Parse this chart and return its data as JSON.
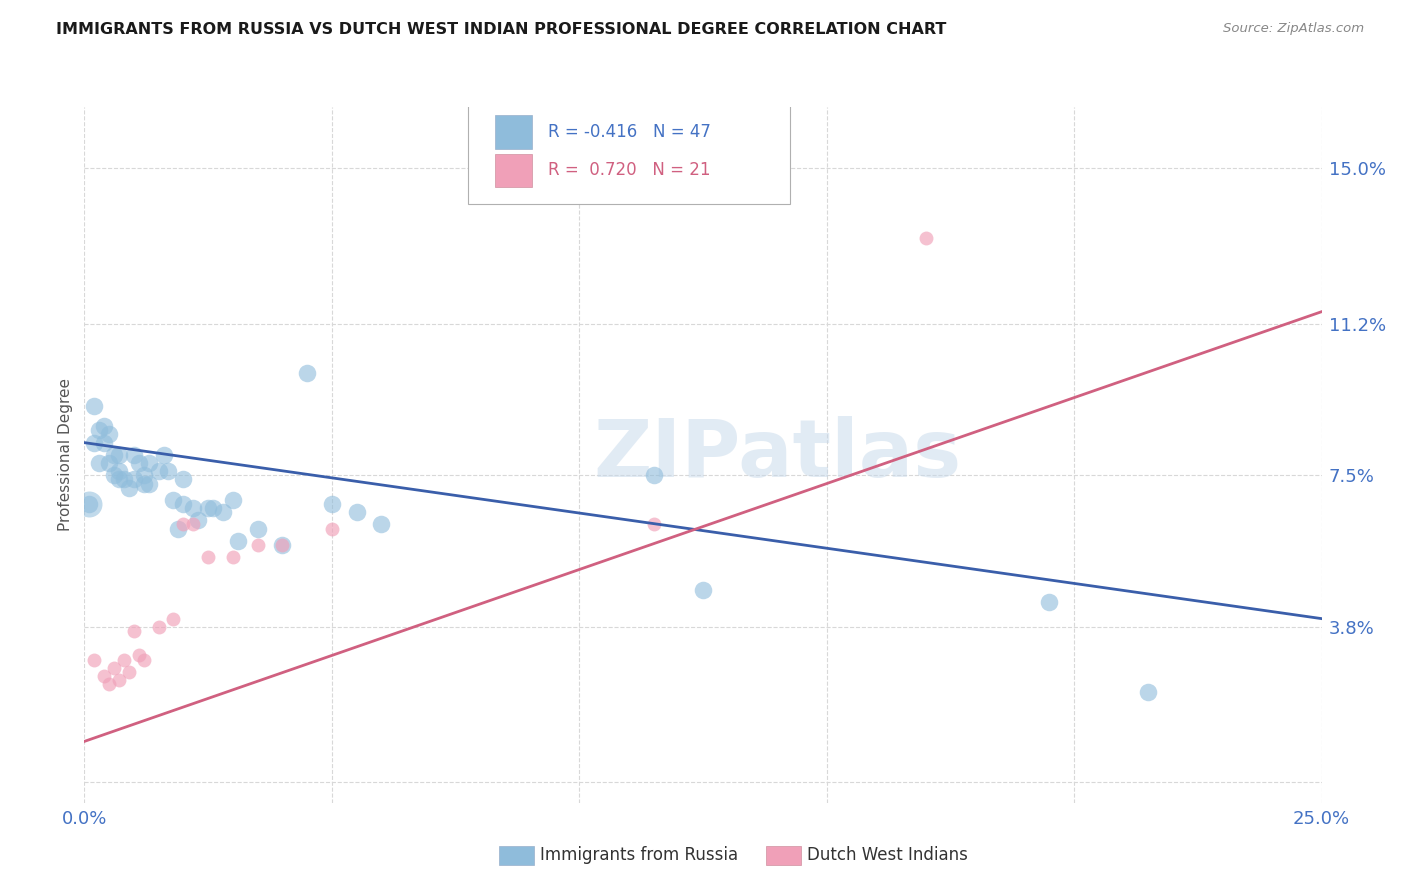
{
  "title": "IMMIGRANTS FROM RUSSIA VS DUTCH WEST INDIAN PROFESSIONAL DEGREE CORRELATION CHART",
  "source": "Source: ZipAtlas.com",
  "ylabel": "Professional Degree",
  "xlim": [
    0.0,
    0.25
  ],
  "ylim": [
    -0.005,
    0.165
  ],
  "yticks": [
    0.0,
    0.038,
    0.075,
    0.112,
    0.15
  ],
  "ytick_labels": [
    "",
    "3.8%",
    "7.5%",
    "11.2%",
    "15.0%"
  ],
  "xticks": [
    0.0,
    0.05,
    0.1,
    0.15,
    0.2,
    0.25
  ],
  "xtick_labels": [
    "0.0%",
    "",
    "",
    "",
    "",
    "25.0%"
  ],
  "russia_color": "#8fbcdb",
  "dutch_color": "#f0a0b8",
  "russia_line_color": "#3a5eaa",
  "dutch_line_color": "#d06080",
  "russia_R": -0.416,
  "russia_N": 47,
  "dutch_R": 0.72,
  "dutch_N": 21,
  "russia_scatter_x": [
    0.001,
    0.002,
    0.002,
    0.003,
    0.003,
    0.004,
    0.004,
    0.005,
    0.005,
    0.006,
    0.006,
    0.007,
    0.007,
    0.007,
    0.008,
    0.009,
    0.01,
    0.01,
    0.011,
    0.012,
    0.012,
    0.013,
    0.013,
    0.015,
    0.016,
    0.017,
    0.018,
    0.019,
    0.02,
    0.02,
    0.022,
    0.023,
    0.025,
    0.026,
    0.028,
    0.03,
    0.031,
    0.035,
    0.04,
    0.045,
    0.05,
    0.055,
    0.06,
    0.115,
    0.125,
    0.195,
    0.215
  ],
  "russia_scatter_y": [
    0.068,
    0.092,
    0.083,
    0.086,
    0.078,
    0.083,
    0.087,
    0.078,
    0.085,
    0.08,
    0.075,
    0.074,
    0.076,
    0.08,
    0.074,
    0.072,
    0.074,
    0.08,
    0.078,
    0.073,
    0.075,
    0.073,
    0.078,
    0.076,
    0.08,
    0.076,
    0.069,
    0.062,
    0.068,
    0.074,
    0.067,
    0.064,
    0.067,
    0.067,
    0.066,
    0.069,
    0.059,
    0.062,
    0.058,
    0.1,
    0.068,
    0.066,
    0.063,
    0.075,
    0.047,
    0.044,
    0.022
  ],
  "dutch_scatter_x": [
    0.002,
    0.004,
    0.005,
    0.006,
    0.007,
    0.008,
    0.009,
    0.01,
    0.011,
    0.012,
    0.015,
    0.018,
    0.02,
    0.022,
    0.025,
    0.03,
    0.035,
    0.04,
    0.05,
    0.115,
    0.17
  ],
  "dutch_scatter_y": [
    0.03,
    0.026,
    0.024,
    0.028,
    0.025,
    0.03,
    0.027,
    0.037,
    0.031,
    0.03,
    0.038,
    0.04,
    0.063,
    0.063,
    0.055,
    0.055,
    0.058,
    0.058,
    0.062,
    0.063,
    0.133
  ],
  "russia_line_x": [
    0.0,
    0.25
  ],
  "russia_line_y": [
    0.083,
    0.04
  ],
  "dutch_line_x": [
    0.0,
    0.25
  ],
  "dutch_line_y": [
    0.01,
    0.115
  ],
  "watermark": "ZIPatlas",
  "background_color": "#ffffff",
  "grid_color": "#d8d8d8",
  "legend_russia_label": "R = -0.416   N = 47",
  "legend_dutch_label": "R =  0.720   N = 21",
  "bottom_legend_russia": "Immigrants from Russia",
  "bottom_legend_dutch": "Dutch West Indians"
}
